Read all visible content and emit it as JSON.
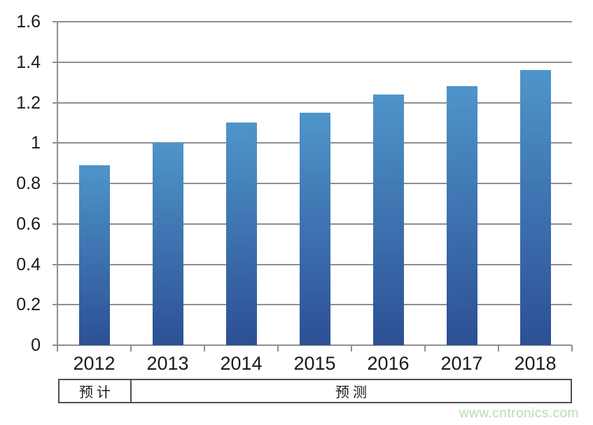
{
  "chart_data": {
    "type": "bar",
    "categories": [
      "2012",
      "2013",
      "2014",
      "2015",
      "2016",
      "2017",
      "2018"
    ],
    "values": [
      0.89,
      1.0,
      1.1,
      1.15,
      1.24,
      1.28,
      1.36
    ],
    "title": "",
    "xlabel": "",
    "ylabel": "",
    "ylim": [
      0,
      1.6
    ],
    "ytick_step": 0.2,
    "ytick_labels": [
      "0",
      "0.2",
      "0.4",
      "0.6",
      "0.8",
      "1",
      "1.2",
      "1.4",
      "1.6"
    ],
    "grid": true,
    "legend": false,
    "colors": {
      "bar_top": "#4e95ca",
      "bar_bottom": "#2d4f95",
      "gridline": "#8f8f8f",
      "text": "#1a1a1a",
      "table_border": "#4f4f4f"
    }
  },
  "footer": {
    "cells": [
      {
        "label": "预计",
        "span": 1
      },
      {
        "label": "预测",
        "span": 6
      }
    ]
  },
  "watermark": {
    "text": "www.cntronics.com",
    "color": "#b0e2a6"
  }
}
